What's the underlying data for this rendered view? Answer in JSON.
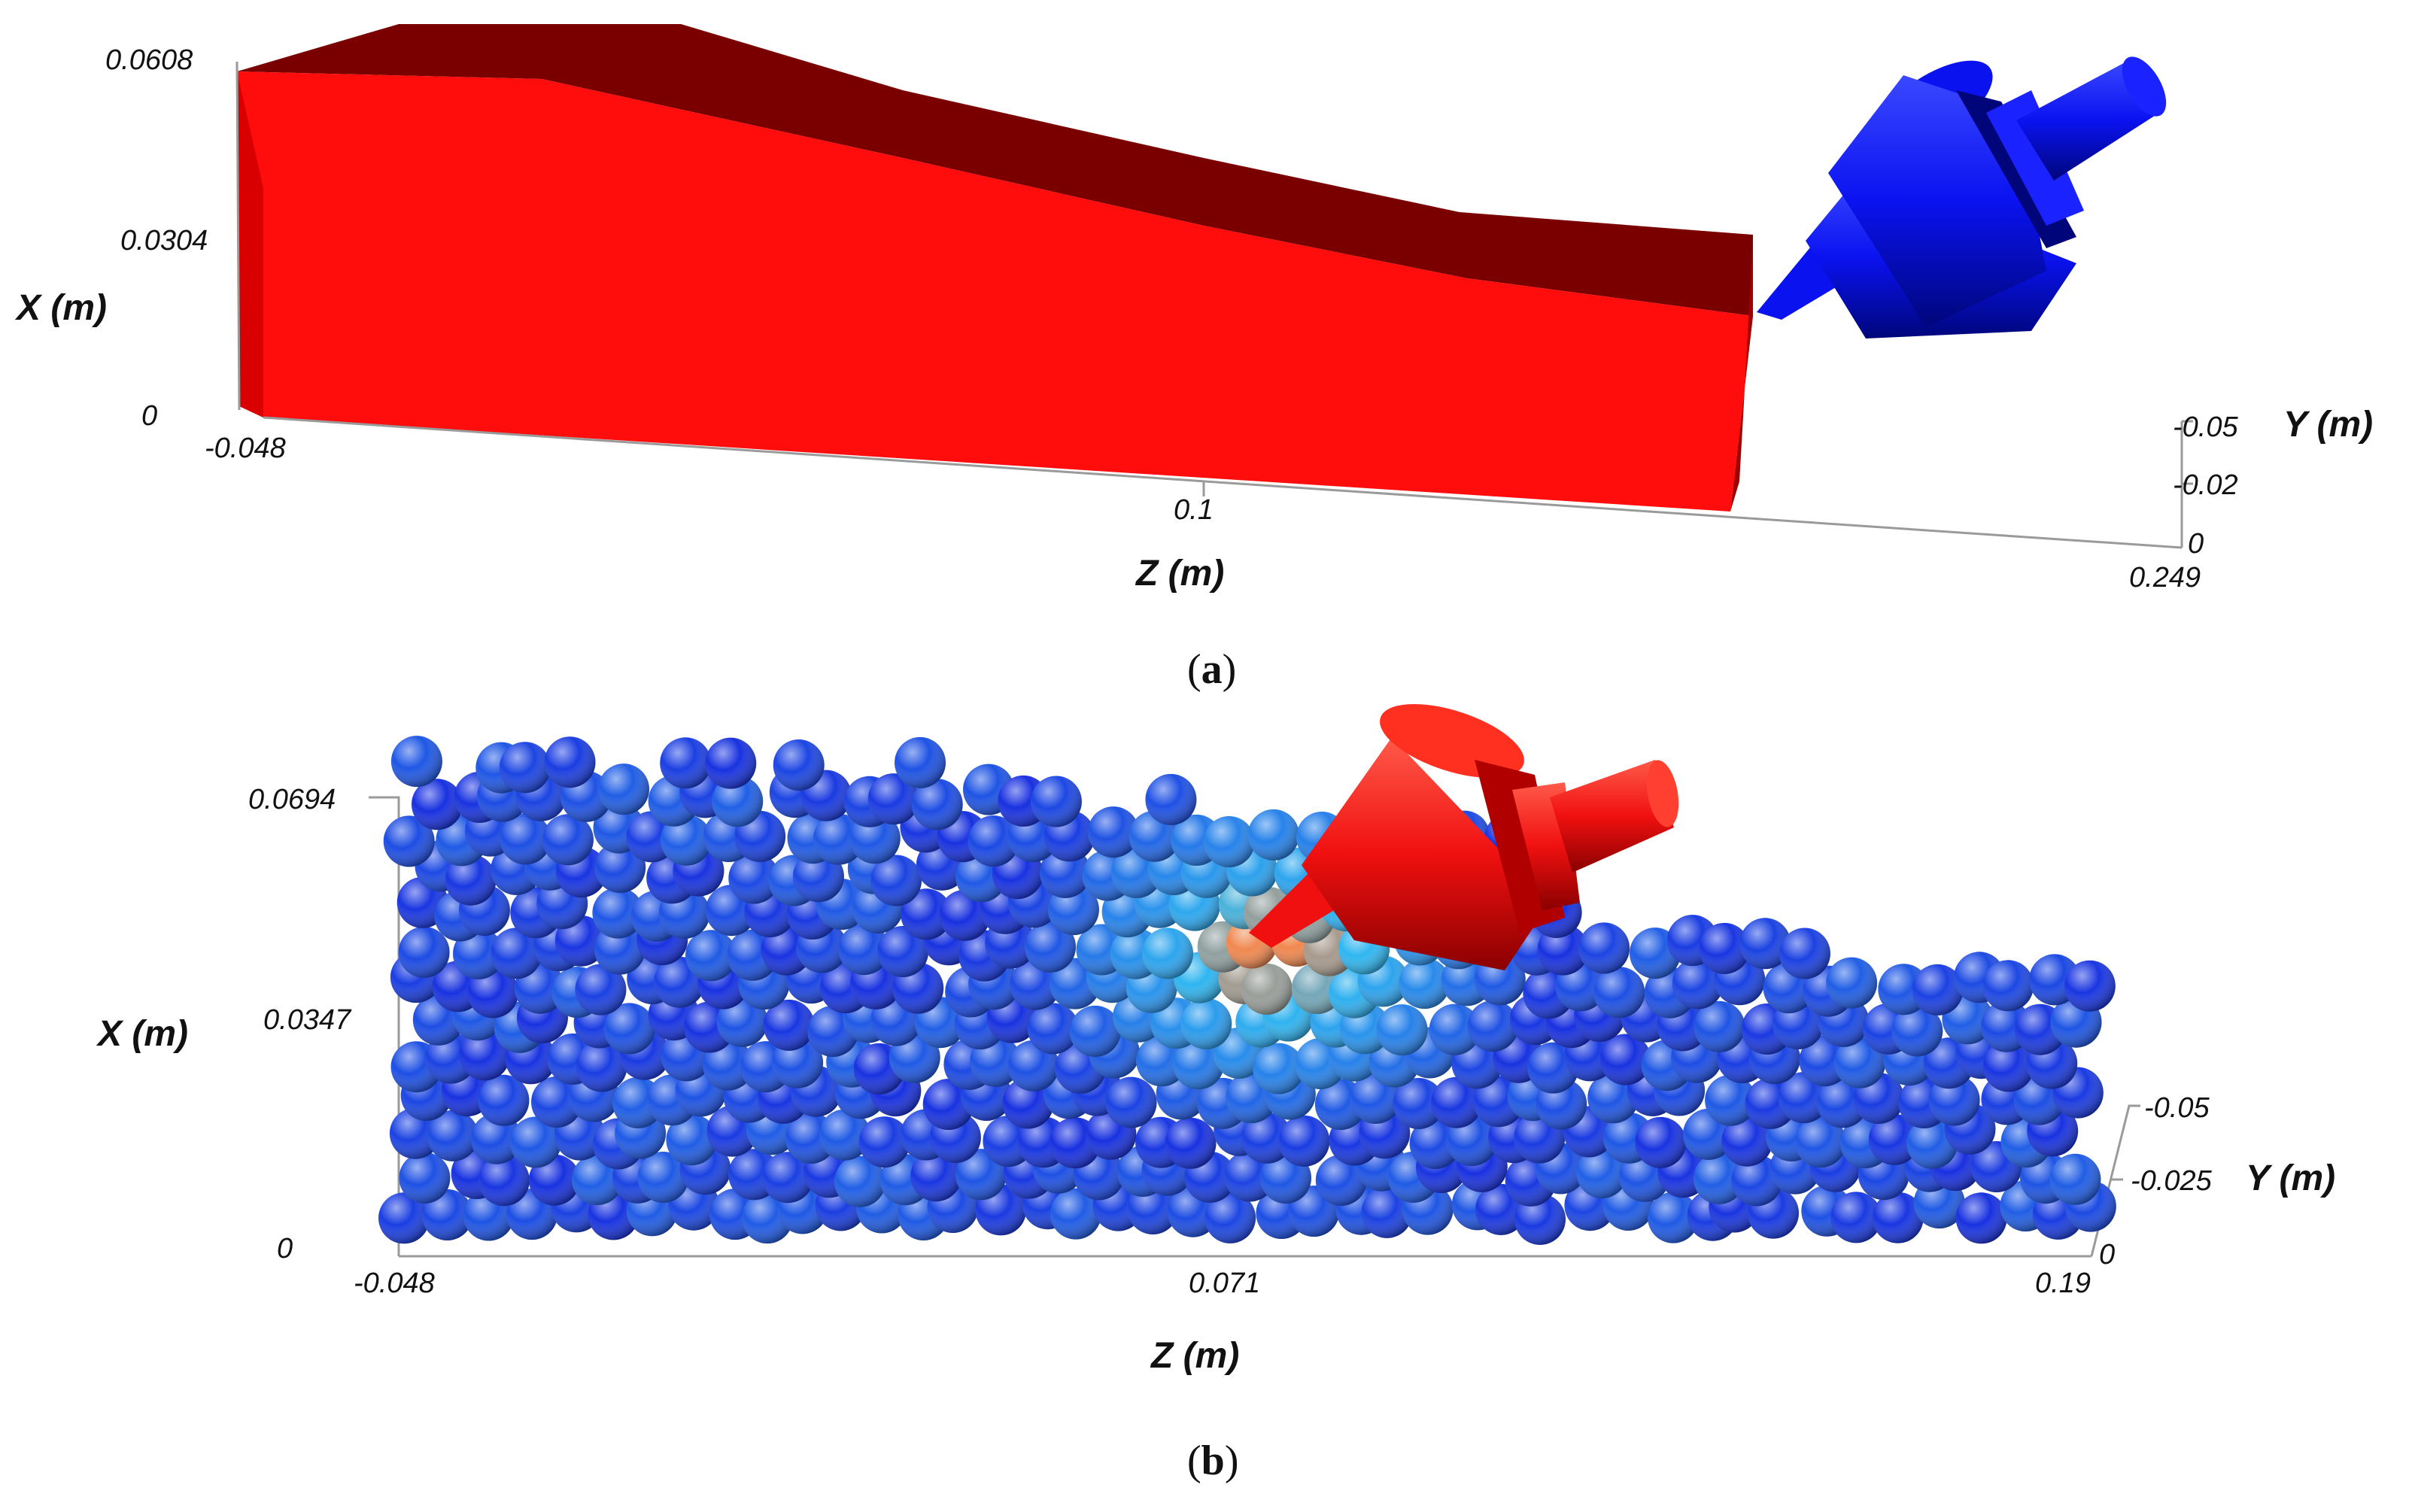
{
  "panels": [
    {
      "id": "a",
      "caption_open": "(",
      "caption_letter": "a",
      "caption_close": ")",
      "x_axis_label": "X (m)",
      "z_axis_label": "Z (m)",
      "y_axis_label": "Y (m)",
      "x_ticks": [
        "0.0608",
        "0.0304",
        "0"
      ],
      "z_ticks": [
        "-0.048",
        "0.1",
        "0.249"
      ],
      "y_ticks": [
        "-0.05",
        "-0.02",
        "0"
      ],
      "workpiece_color": "#ff0d0d",
      "workpiece_top_color": "#7a0000",
      "tool_color": "#0a12f0"
    },
    {
      "id": "b",
      "caption_open": "(",
      "caption_letter": "b",
      "caption_close": ")",
      "x_axis_label": "X (m)",
      "z_axis_label": "Z (m)",
      "y_axis_label": "Y (m)",
      "x_ticks": [
        "0.0694",
        "0.0347",
        "0"
      ],
      "z_ticks": [
        "-0.048",
        "0.071",
        "0.19"
      ],
      "y_ticks": [
        "-0.05",
        "-0.025",
        "0"
      ],
      "particle_color_low": "#1830e0",
      "particle_color_mid": "#30b8f0",
      "particle_color_high": "#f08850",
      "tool_color": "#f01010"
    }
  ]
}
